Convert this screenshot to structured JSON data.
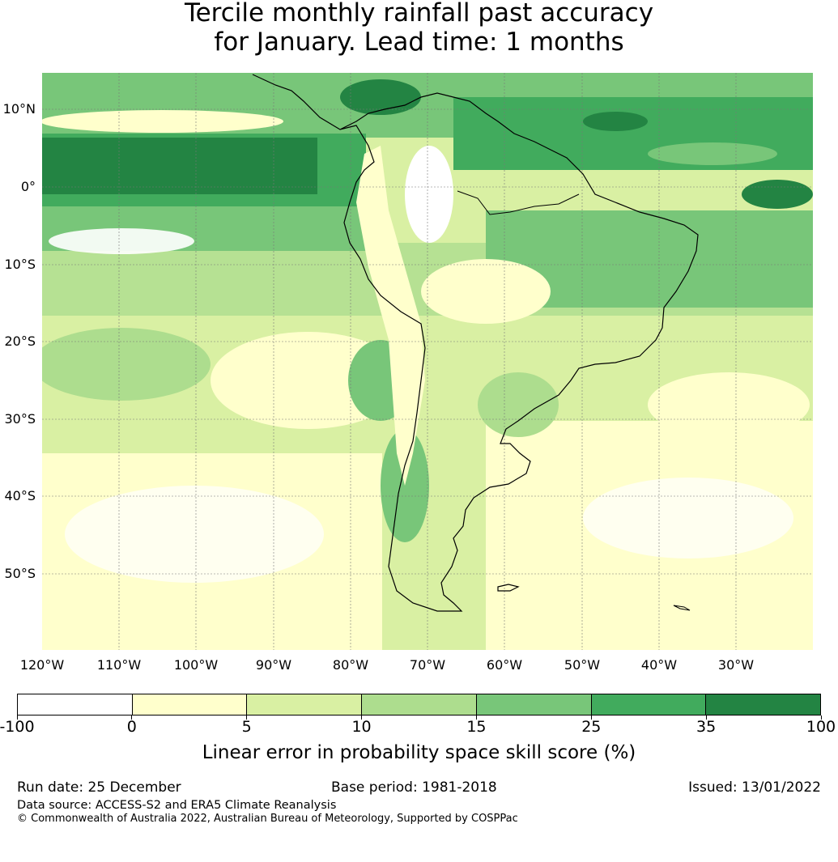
{
  "title": {
    "line1": "Tercile monthly rainfall past accuracy",
    "line2": "for January. Lead time: 1 months"
  },
  "map": {
    "region": "South America and surrounding oceans",
    "lat_labels": [
      "10°N",
      "0°",
      "10°S",
      "20°S",
      "30°S",
      "40°S",
      "50°S"
    ],
    "lon_labels": [
      "120°W",
      "110°W",
      "100°W",
      "90°W",
      "80°W",
      "70°W",
      "60°W",
      "50°W",
      "40°W",
      "30°W"
    ]
  },
  "colorbar": {
    "ticks": [
      "-100",
      "0",
      "5",
      "10",
      "15",
      "25",
      "35",
      "100"
    ],
    "colors": [
      "#ffffff",
      "#ffffcc",
      "#d9f0a3",
      "#addd8e",
      "#78c679",
      "#41ab5d",
      "#238443"
    ],
    "label": "Linear error in probability space skill score (%)"
  },
  "footer": {
    "run_date": "Run date: 25 December",
    "base_period": "Base period: 1981-2018",
    "issued": "Issued: 13/01/2022",
    "source": "Data source: ACCESS-S2 and ERA5 Climate Reanalysis",
    "copyright": "© Commonwealth of Australia 2022, Australian Bureau of Meteorology, Supported by COSPPac"
  }
}
